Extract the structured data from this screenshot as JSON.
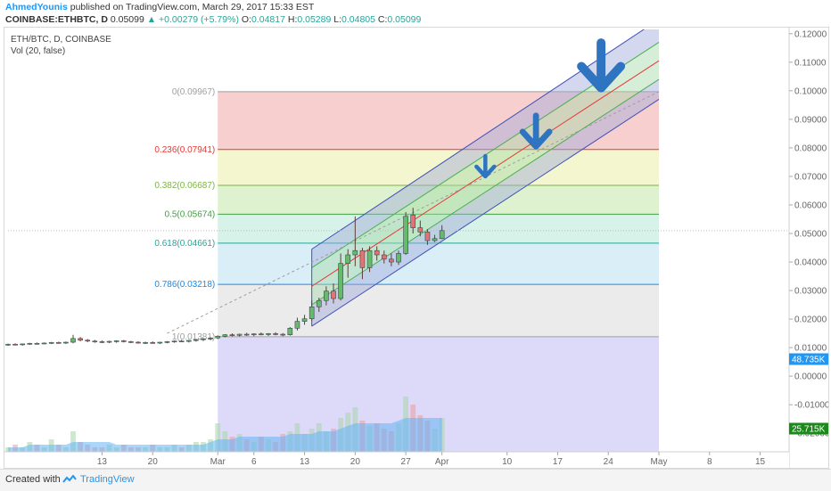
{
  "header": {
    "author": "AhmedYounis",
    "published_text": "published on TradingView.com, March 29, 2017 15:33 EST",
    "symbol": "COINBASE:ETHBTC, D",
    "last": "0.05099",
    "change": "▲ +0.00279 (+5.79%)",
    "o_label": "O:",
    "o_val": "0.04817",
    "h_label": "H:",
    "h_val": "0.05289",
    "l_label": "L:",
    "l_val": "0.04805",
    "c_label": "C:",
    "c_val": "0.05099"
  },
  "legend": {
    "title": "ETH/BTC, D, COINBASE",
    "volume": "Vol (20, false)"
  },
  "footer": {
    "created_with": "Created with",
    "brand": "TradingView"
  },
  "chart_data": {
    "type": "candlestick",
    "x_ticks": [
      {
        "label": "13",
        "day": 13
      },
      {
        "label": "20",
        "day": 20
      },
      {
        "label": "Mar",
        "day": 29
      },
      {
        "label": "6",
        "day": 34
      },
      {
        "label": "13",
        "day": 41
      },
      {
        "label": "20",
        "day": 48
      },
      {
        "label": "27",
        "day": 55
      },
      {
        "label": "Apr",
        "day": 60
      },
      {
        "label": "10",
        "day": 69
      },
      {
        "label": "17",
        "day": 76
      },
      {
        "label": "24",
        "day": 83
      },
      {
        "label": "May",
        "day": 90
      },
      {
        "label": "8",
        "day": 97
      },
      {
        "label": "15",
        "day": 104
      }
    ],
    "y_ticks": [
      "0.12000",
      "0.11000",
      "0.10000",
      "0.09000",
      "0.08000",
      "0.07000",
      "0.06000",
      "0.05000",
      "0.04000",
      "0.03000",
      "0.02000",
      "0.01000",
      "0.00000",
      "-0.01000",
      "-0.02000"
    ],
    "y_range": [
      -0.0265,
      0.1215
    ],
    "x_range": [
      0,
      108
    ],
    "fib_levels": [
      {
        "ratio": "0",
        "label": "0(0.09967)",
        "value": 0.09967,
        "color": "#9e9e9e"
      },
      {
        "ratio": "0.236",
        "label": "0.236(0.07941)",
        "value": 0.07941,
        "color": "#e53935"
      },
      {
        "ratio": "0.382",
        "label": "0.382(0.06687)",
        "value": 0.06687,
        "color": "#7cb342"
      },
      {
        "ratio": "0.5",
        "label": "0.5(0.05674)",
        "value": 0.05674,
        "color": "#43a047"
      },
      {
        "ratio": "0.618",
        "label": "0.618(0.04661)",
        "value": 0.04661,
        "color": "#26a69a"
      },
      {
        "ratio": "0.786",
        "label": "0.786(0.03218)",
        "value": 0.03218,
        "color": "#1e88e5"
      },
      {
        "ratio": "1",
        "label": "1(0.01381)",
        "value": 0.01381,
        "color": "#9e9e9e"
      }
    ],
    "fib_zone_colors": [
      "#f6c7c7",
      "#f1f5c6",
      "#d8f0c8",
      "#d0f0e4",
      "#d3ebf7",
      "#e7e7e7",
      "#d7d4f8"
    ],
    "fib_x_range": [
      29,
      90
    ],
    "candles": [
      {
        "day": 0,
        "o": 0.011,
        "h": 0.0114,
        "l": 0.0106,
        "c": 0.0112
      },
      {
        "day": 1,
        "o": 0.0112,
        "h": 0.0115,
        "l": 0.0108,
        "c": 0.0111
      },
      {
        "day": 2,
        "o": 0.0111,
        "h": 0.0114,
        "l": 0.0107,
        "c": 0.0113
      },
      {
        "day": 3,
        "o": 0.0113,
        "h": 0.0117,
        "l": 0.011,
        "c": 0.0115
      },
      {
        "day": 4,
        "o": 0.0115,
        "h": 0.0118,
        "l": 0.0111,
        "c": 0.0114
      },
      {
        "day": 5,
        "o": 0.0114,
        "h": 0.0118,
        "l": 0.0112,
        "c": 0.0116
      },
      {
        "day": 6,
        "o": 0.0116,
        "h": 0.012,
        "l": 0.0113,
        "c": 0.0118
      },
      {
        "day": 7,
        "o": 0.0118,
        "h": 0.0121,
        "l": 0.0114,
        "c": 0.0117
      },
      {
        "day": 8,
        "o": 0.0117,
        "h": 0.0121,
        "l": 0.0113,
        "c": 0.0119
      },
      {
        "day": 9,
        "o": 0.0119,
        "h": 0.0145,
        "l": 0.0115,
        "c": 0.0132
      },
      {
        "day": 10,
        "o": 0.0132,
        "h": 0.0137,
        "l": 0.0122,
        "c": 0.0126
      },
      {
        "day": 11,
        "o": 0.0126,
        "h": 0.013,
        "l": 0.0119,
        "c": 0.0123
      },
      {
        "day": 12,
        "o": 0.0123,
        "h": 0.0127,
        "l": 0.0117,
        "c": 0.0121
      },
      {
        "day": 13,
        "o": 0.0121,
        "h": 0.0125,
        "l": 0.0116,
        "c": 0.012
      },
      {
        "day": 14,
        "o": 0.012,
        "h": 0.0124,
        "l": 0.0116,
        "c": 0.0122
      },
      {
        "day": 15,
        "o": 0.0122,
        "h": 0.0126,
        "l": 0.0117,
        "c": 0.0124
      },
      {
        "day": 16,
        "o": 0.0124,
        "h": 0.0127,
        "l": 0.0118,
        "c": 0.0121
      },
      {
        "day": 17,
        "o": 0.0121,
        "h": 0.0124,
        "l": 0.0116,
        "c": 0.0119
      },
      {
        "day": 18,
        "o": 0.0119,
        "h": 0.0122,
        "l": 0.0114,
        "c": 0.0117
      },
      {
        "day": 19,
        "o": 0.0117,
        "h": 0.0121,
        "l": 0.0113,
        "c": 0.0118
      },
      {
        "day": 20,
        "o": 0.0118,
        "h": 0.0122,
        "l": 0.0114,
        "c": 0.0116
      },
      {
        "day": 21,
        "o": 0.0116,
        "h": 0.012,
        "l": 0.0113,
        "c": 0.0119
      },
      {
        "day": 22,
        "o": 0.0119,
        "h": 0.0123,
        "l": 0.0115,
        "c": 0.0121
      },
      {
        "day": 23,
        "o": 0.0121,
        "h": 0.0125,
        "l": 0.0117,
        "c": 0.0123
      },
      {
        "day": 24,
        "o": 0.0123,
        "h": 0.0127,
        "l": 0.0119,
        "c": 0.0122
      },
      {
        "day": 25,
        "o": 0.0122,
        "h": 0.0127,
        "l": 0.0118,
        "c": 0.0125
      },
      {
        "day": 26,
        "o": 0.0125,
        "h": 0.013,
        "l": 0.0121,
        "c": 0.0128
      },
      {
        "day": 27,
        "o": 0.0128,
        "h": 0.0133,
        "l": 0.0123,
        "c": 0.0131
      },
      {
        "day": 28,
        "o": 0.0131,
        "h": 0.0136,
        "l": 0.0126,
        "c": 0.0134
      },
      {
        "day": 29,
        "o": 0.0134,
        "h": 0.0143,
        "l": 0.013,
        "c": 0.014
      },
      {
        "day": 30,
        "o": 0.014,
        "h": 0.0147,
        "l": 0.0136,
        "c": 0.0145
      },
      {
        "day": 31,
        "o": 0.0145,
        "h": 0.015,
        "l": 0.0139,
        "c": 0.0143
      },
      {
        "day": 32,
        "o": 0.0143,
        "h": 0.0149,
        "l": 0.0139,
        "c": 0.0147
      },
      {
        "day": 33,
        "o": 0.0147,
        "h": 0.0152,
        "l": 0.0141,
        "c": 0.0145
      },
      {
        "day": 34,
        "o": 0.0145,
        "h": 0.015,
        "l": 0.014,
        "c": 0.0148
      },
      {
        "day": 35,
        "o": 0.0148,
        "h": 0.0153,
        "l": 0.0143,
        "c": 0.0146
      },
      {
        "day": 36,
        "o": 0.0146,
        "h": 0.0151,
        "l": 0.0141,
        "c": 0.0149
      },
      {
        "day": 37,
        "o": 0.0149,
        "h": 0.0154,
        "l": 0.0143,
        "c": 0.0147
      },
      {
        "day": 38,
        "o": 0.0147,
        "h": 0.0151,
        "l": 0.014,
        "c": 0.0145
      },
      {
        "day": 39,
        "o": 0.0145,
        "h": 0.0172,
        "l": 0.0142,
        "c": 0.0168
      },
      {
        "day": 40,
        "o": 0.0168,
        "h": 0.0205,
        "l": 0.016,
        "c": 0.0192
      },
      {
        "day": 41,
        "o": 0.0192,
        "h": 0.0215,
        "l": 0.018,
        "c": 0.0201
      },
      {
        "day": 42,
        "o": 0.0201,
        "h": 0.0265,
        "l": 0.0195,
        "c": 0.0243
      },
      {
        "day": 43,
        "o": 0.0243,
        "h": 0.0275,
        "l": 0.0225,
        "c": 0.0265
      },
      {
        "day": 44,
        "o": 0.0265,
        "h": 0.0315,
        "l": 0.0248,
        "c": 0.0298
      },
      {
        "day": 45,
        "o": 0.0298,
        "h": 0.0325,
        "l": 0.0255,
        "c": 0.0272
      },
      {
        "day": 46,
        "o": 0.0272,
        "h": 0.043,
        "l": 0.0265,
        "c": 0.0395
      },
      {
        "day": 47,
        "o": 0.0395,
        "h": 0.0445,
        "l": 0.0345,
        "c": 0.0425
      },
      {
        "day": 48,
        "o": 0.0425,
        "h": 0.056,
        "l": 0.0385,
        "c": 0.044
      },
      {
        "day": 49,
        "o": 0.044,
        "h": 0.045,
        "l": 0.034,
        "c": 0.038
      },
      {
        "day": 50,
        "o": 0.038,
        "h": 0.0455,
        "l": 0.0365,
        "c": 0.044
      },
      {
        "day": 51,
        "o": 0.044,
        "h": 0.0455,
        "l": 0.0405,
        "c": 0.0425
      },
      {
        "day": 52,
        "o": 0.0425,
        "h": 0.044,
        "l": 0.0395,
        "c": 0.041
      },
      {
        "day": 53,
        "o": 0.041,
        "h": 0.043,
        "l": 0.0385,
        "c": 0.04
      },
      {
        "day": 54,
        "o": 0.04,
        "h": 0.044,
        "l": 0.039,
        "c": 0.043
      },
      {
        "day": 55,
        "o": 0.043,
        "h": 0.0575,
        "l": 0.0425,
        "c": 0.056
      },
      {
        "day": 56,
        "o": 0.0565,
        "h": 0.059,
        "l": 0.05,
        "c": 0.052
      },
      {
        "day": 57,
        "o": 0.052,
        "h": 0.0545,
        "l": 0.049,
        "c": 0.0505
      },
      {
        "day": 58,
        "o": 0.0505,
        "h": 0.0515,
        "l": 0.046,
        "c": 0.0475
      },
      {
        "day": 59,
        "o": 0.0475,
        "h": 0.0495,
        "l": 0.047,
        "c": 0.0482
      },
      {
        "day": 60,
        "o": 0.0482,
        "h": 0.0529,
        "l": 0.048,
        "c": 0.051
      }
    ],
    "volumes": [
      3,
      4,
      3,
      5,
      4,
      3,
      6,
      4,
      3,
      9,
      5,
      4,
      3,
      3,
      4,
      3,
      4,
      3,
      3,
      3,
      4,
      3,
      3,
      4,
      3,
      4,
      5,
      5,
      6,
      12,
      9,
      7,
      8,
      6,
      5,
      7,
      6,
      5,
      8,
      9,
      12,
      8,
      10,
      12,
      9,
      10,
      14,
      16,
      18,
      13,
      11,
      12,
      10,
      9,
      12,
      22,
      19,
      15,
      13,
      10,
      14
    ],
    "volume_ma": [
      3,
      3,
      3,
      4,
      4,
      4,
      4,
      4,
      4,
      5,
      5,
      5,
      5,
      5,
      5,
      4,
      4,
      4,
      4,
      4,
      4,
      4,
      4,
      4,
      4,
      4,
      4,
      4,
      5,
      6,
      6,
      6,
      7,
      7,
      7,
      7,
      7,
      7,
      7,
      8,
      8,
      8,
      8,
      9,
      9,
      9,
      10,
      11,
      12,
      12,
      12,
      12,
      12,
      12,
      13,
      14,
      14,
      14,
      14,
      14,
      14
    ],
    "volume_max": 60,
    "vol_tags": [
      {
        "label": "48.735K",
        "vol": 36,
        "color": "#2196f3"
      },
      {
        "label": "25.715K",
        "vol": 10,
        "color": "#1b8a1b"
      }
    ],
    "price_tag": {
      "label": "0.05099",
      "value": 0.05099,
      "color": "#26a69a"
    },
    "channel": {
      "x0": 42,
      "x1": 90,
      "lines": [
        {
          "y0": 0.0445,
          "y1": 0.125,
          "color": "#3f51b5"
        },
        {
          "y0": 0.038,
          "y1": 0.117,
          "color": "#4caf50"
        },
        {
          "y0": 0.0315,
          "y1": 0.1105,
          "color": "#e53935"
        },
        {
          "y0": 0.025,
          "y1": 0.104,
          "color": "#4caf50"
        },
        {
          "y0": 0.0175,
          "y1": 0.097,
          "color": "#3f51b5"
        }
      ]
    },
    "trendline": {
      "d0": 22,
      "v0": 0.015,
      "d1": 90,
      "v1": 0.0997
    },
    "arrows": [
      {
        "day": 66,
        "value": 0.07,
        "size": 1.0
      },
      {
        "day": 73,
        "value": 0.0805,
        "size": 1.5
      },
      {
        "day": 82,
        "value": 0.101,
        "size": 2.2
      }
    ]
  }
}
